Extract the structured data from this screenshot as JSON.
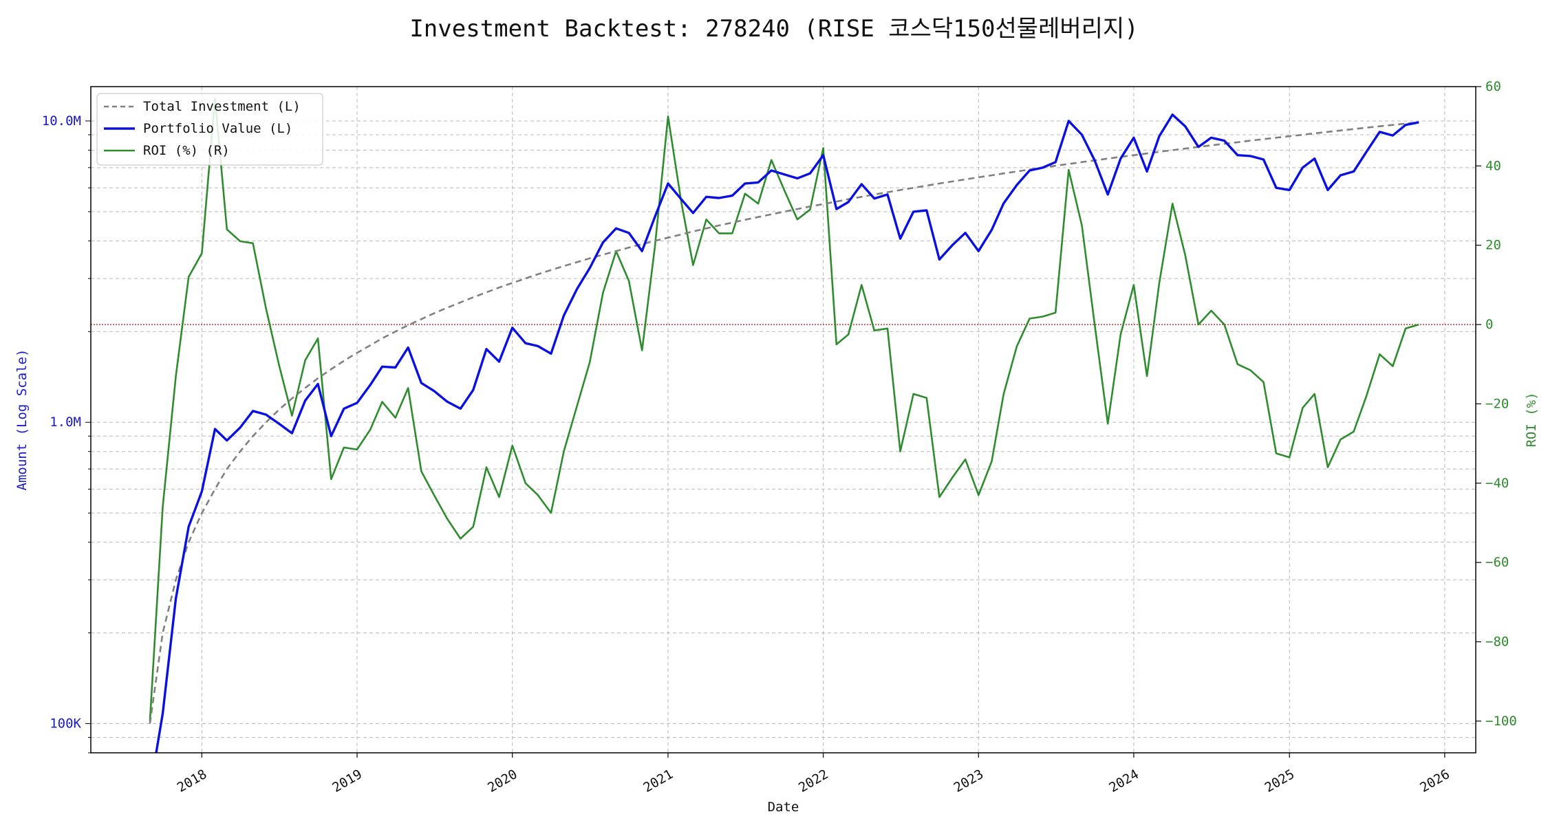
{
  "chart_data": {
    "type": "line",
    "title": "Investment Backtest: 278240 (RISE 코스닥150선물레버리지)",
    "xlabel": "Date",
    "ylabel_left": "Amount (Log Scale)",
    "ylabel_right": "ROI (%)",
    "left_scale": "log",
    "left_ylim": [
      80000,
      13000000
    ],
    "right_ylim": [
      -108,
      60
    ],
    "xlim": [
      "2017-04-15",
      "2026-03-15"
    ],
    "grid": true,
    "legend_position": "top-left",
    "x_ticks": [
      "2018",
      "2019",
      "2020",
      "2021",
      "2022",
      "2023",
      "2024",
      "2025",
      "2026"
    ],
    "left_ticks": [
      "100K",
      "1.0M",
      "10.0M"
    ],
    "right_ticks": [
      "60",
      "40",
      "20",
      "0",
      "−20",
      "−40",
      "−60",
      "−80",
      "−100"
    ],
    "zero_line": {
      "value": 0,
      "axis": "right",
      "color": "#b22222"
    },
    "colors": {
      "total_investment": "#808080",
      "portfolio_value": "#0a10e0",
      "roi": "#2e8b2e",
      "left_axis": "#1a1acd",
      "right_axis": "#2e8b2e"
    },
    "x": [
      "2017-09",
      "2017-10",
      "2017-11",
      "2017-12",
      "2018-01",
      "2018-02",
      "2018-03",
      "2018-04",
      "2018-05",
      "2018-06",
      "2018-07",
      "2018-08",
      "2018-09",
      "2018-10",
      "2018-11",
      "2018-12",
      "2019-01",
      "2019-02",
      "2019-03",
      "2019-04",
      "2019-05",
      "2019-06",
      "2019-07",
      "2019-08",
      "2019-09",
      "2019-10",
      "2019-11",
      "2019-12",
      "2020-01",
      "2020-02",
      "2020-03",
      "2020-04",
      "2020-05",
      "2020-06",
      "2020-07",
      "2020-08",
      "2020-09",
      "2020-10",
      "2020-11",
      "2020-12",
      "2021-01",
      "2021-02",
      "2021-03",
      "2021-04",
      "2021-05",
      "2021-06",
      "2021-07",
      "2021-08",
      "2021-09",
      "2021-10",
      "2021-11",
      "2021-12",
      "2022-01",
      "2022-02",
      "2022-03",
      "2022-04",
      "2022-05",
      "2022-06",
      "2022-07",
      "2022-08",
      "2022-09",
      "2022-10",
      "2022-11",
      "2022-12",
      "2023-01",
      "2023-02",
      "2023-03",
      "2023-04",
      "2023-05",
      "2023-06",
      "2023-07",
      "2023-08",
      "2023-09",
      "2023-10",
      "2023-11",
      "2023-12",
      "2024-01",
      "2024-02",
      "2024-03",
      "2024-04",
      "2024-05",
      "2024-06",
      "2024-07",
      "2024-08",
      "2024-09",
      "2024-10",
      "2024-11",
      "2024-12",
      "2025-01",
      "2025-02",
      "2025-03",
      "2025-04",
      "2025-05",
      "2025-06",
      "2025-07",
      "2025-08",
      "2025-09",
      "2025-10",
      "2025-11"
    ],
    "series": [
      {
        "name": "Total Investment (L)",
        "axis": "left",
        "style": "dashed",
        "values": [
          100000,
          200000,
          300000,
          400000,
          500000,
          600000,
          700000,
          800000,
          900000,
          1000000,
          1100000,
          1200000,
          1300000,
          1400000,
          1500000,
          1600000,
          1700000,
          1800000,
          1900000,
          2000000,
          2100000,
          2200000,
          2300000,
          2400000,
          2500000,
          2600000,
          2700000,
          2800000,
          2900000,
          3000000,
          3100000,
          3200000,
          3300000,
          3400000,
          3500000,
          3600000,
          3700000,
          3800000,
          3900000,
          4000000,
          4100000,
          4200000,
          4300000,
          4400000,
          4500000,
          4600000,
          4700000,
          4800000,
          4900000,
          5000000,
          5100000,
          5200000,
          5300000,
          5400000,
          5500000,
          5600000,
          5700000,
          5800000,
          5900000,
          6000000,
          6100000,
          6200000,
          6300000,
          6400000,
          6500000,
          6600000,
          6700000,
          6800000,
          6900000,
          7000000,
          7100000,
          7200000,
          7300000,
          7400000,
          7500000,
          7600000,
          7700000,
          7800000,
          7900000,
          8000000,
          8100000,
          8200000,
          8300000,
          8400000,
          8500000,
          8600000,
          8700000,
          8800000,
          8900000,
          9000000,
          9100000,
          9200000,
          9300000,
          9400000,
          9500000,
          9600000,
          9700000,
          9800000,
          9900000
        ]
      },
      {
        "name": "Portfolio Value (L)",
        "axis": "left",
        "style": "solid",
        "values": [
          60000,
          108000,
          260000,
          450000,
          590000,
          950000,
          870000,
          960000,
          1090000,
          1060000,
          990000,
          920000,
          1180000,
          1340000,
          900000,
          1110000,
          1160000,
          1330000,
          1530000,
          1520000,
          1770000,
          1350000,
          1270000,
          1170000,
          1110000,
          1280000,
          1750000,
          1590000,
          2060000,
          1830000,
          1790000,
          1690000,
          2260000,
          2770000,
          3250000,
          3950000,
          4400000,
          4250000,
          3700000,
          4800000,
          6200000,
          5500000,
          4950000,
          5600000,
          5550000,
          5650000,
          6200000,
          6250000,
          6850000,
          6650000,
          6450000,
          6700000,
          7700000,
          5100000,
          5380000,
          6170000,
          5530000,
          5700000,
          4070000,
          5000000,
          5050000,
          3470000,
          3880000,
          4250000,
          3700000,
          4350000,
          5330000,
          6130000,
          6850000,
          7000000,
          7300000,
          10000000,
          9000000,
          7400000,
          5700000,
          7500000,
          8800000,
          6800000,
          8900000,
          10500000,
          9600000,
          8200000,
          8800000,
          8600000,
          7700000,
          7650000,
          7450000,
          6000000,
          5900000,
          7000000,
          7500000,
          5900000,
          6600000,
          6800000,
          7900000,
          9200000,
          8950000,
          9700000,
          9900000
        ]
      },
      {
        "name": "ROI (%) (R)",
        "axis": "right",
        "style": "solid",
        "values": [
          -100,
          -46,
          -13,
          12,
          18,
          57,
          24,
          21,
          20.5,
          4,
          -10,
          -23,
          -9,
          -3.5,
          -39,
          -31,
          -31.5,
          -26.5,
          -19.5,
          -23.5,
          -16,
          -37,
          -43,
          -49,
          -54,
          -51,
          -36,
          -43.5,
          -30.5,
          -40,
          -43,
          -47.5,
          -32,
          -20.5,
          -9.5,
          8,
          18.5,
          11,
          -6.5,
          19.5,
          52.5,
          31,
          15,
          26.5,
          23,
          23,
          33,
          30.5,
          41.5,
          34,
          26.5,
          29,
          44.5,
          -5,
          -2.5,
          10,
          -1.5,
          -1,
          -32,
          -17.5,
          -18.5,
          -43.5,
          -38.5,
          -34,
          -43,
          -34.5,
          -17.5,
          -5.5,
          1.5,
          2,
          3,
          39,
          25,
          0,
          -25,
          -2.5,
          10,
          -13,
          10.5,
          30.5,
          17.5,
          0,
          3.5,
          0,
          -10,
          -11.5,
          -14.5,
          -32.5,
          -33.5,
          -21,
          -17.5,
          -36,
          -29,
          -27,
          -18,
          -7.5,
          -10.5,
          -1,
          0
        ]
      }
    ]
  }
}
